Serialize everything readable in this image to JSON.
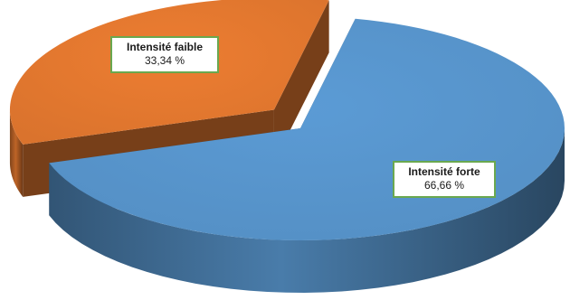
{
  "chart_data": {
    "type": "pie",
    "style": "3d-exploded",
    "slices": [
      {
        "name": "Intensité forte",
        "value": 66.66,
        "label": "66,66 %",
        "color": "#5b9bd5"
      },
      {
        "name": "Intensité faible",
        "value": 33.34,
        "label": "33,34 %",
        "color": "#ed7d31"
      }
    ],
    "data_label_border_color": "#6aa84f"
  }
}
